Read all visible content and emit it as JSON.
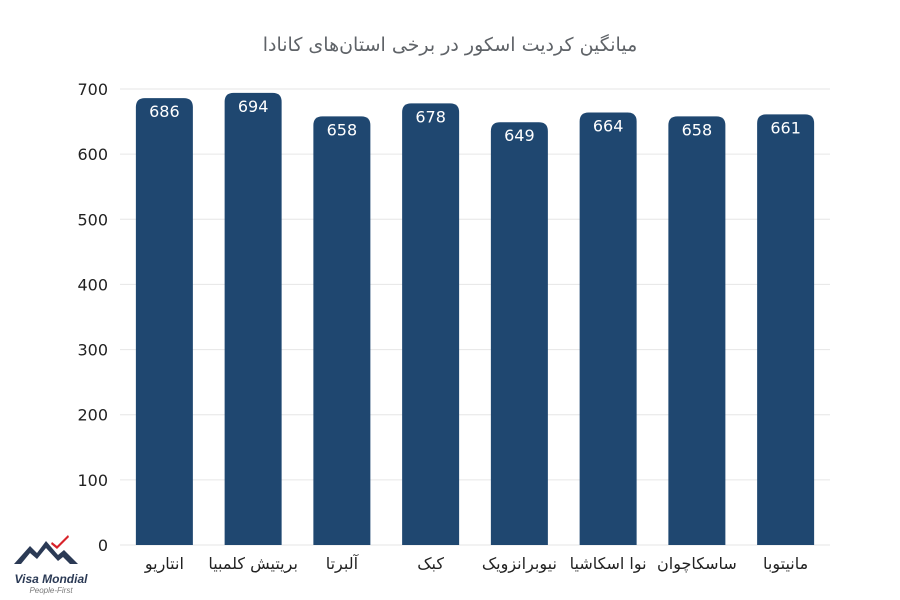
{
  "chart_data": {
    "type": "bar",
    "title": "میانگین کردیت اسکور در برخی استان‌های کانادا",
    "categories": [
      "انتاریو",
      "بریتیش کلمبیا",
      "آلبرتا",
      "کبک",
      "نیوبرانزویک",
      "نوا اسکاشیا",
      "ساسکاچوان",
      "مانیتوبا"
    ],
    "values": [
      686,
      694,
      658,
      678,
      649,
      664,
      658,
      661
    ],
    "data_labels": [
      "686",
      "694",
      "658",
      "678",
      "649",
      "664",
      "658",
      "661"
    ],
    "ylim": [
      0,
      700
    ],
    "yticks": [
      0,
      100,
      200,
      300,
      400,
      500,
      600,
      700
    ],
    "ytick_labels": [
      "0",
      "100",
      "200",
      "300",
      "400",
      "500",
      "600",
      "700"
    ],
    "grid": true,
    "legend": "none",
    "bar_color": "#1f4770",
    "data_label_color": "#ffffff",
    "grid_color": "#e6e6e6"
  },
  "logo": {
    "name": "Visa Mondial",
    "tagline": "People-First",
    "icon": "mountain-logo-icon",
    "mountain_color": "#2b3a55",
    "accent_color": "#d8232a"
  }
}
